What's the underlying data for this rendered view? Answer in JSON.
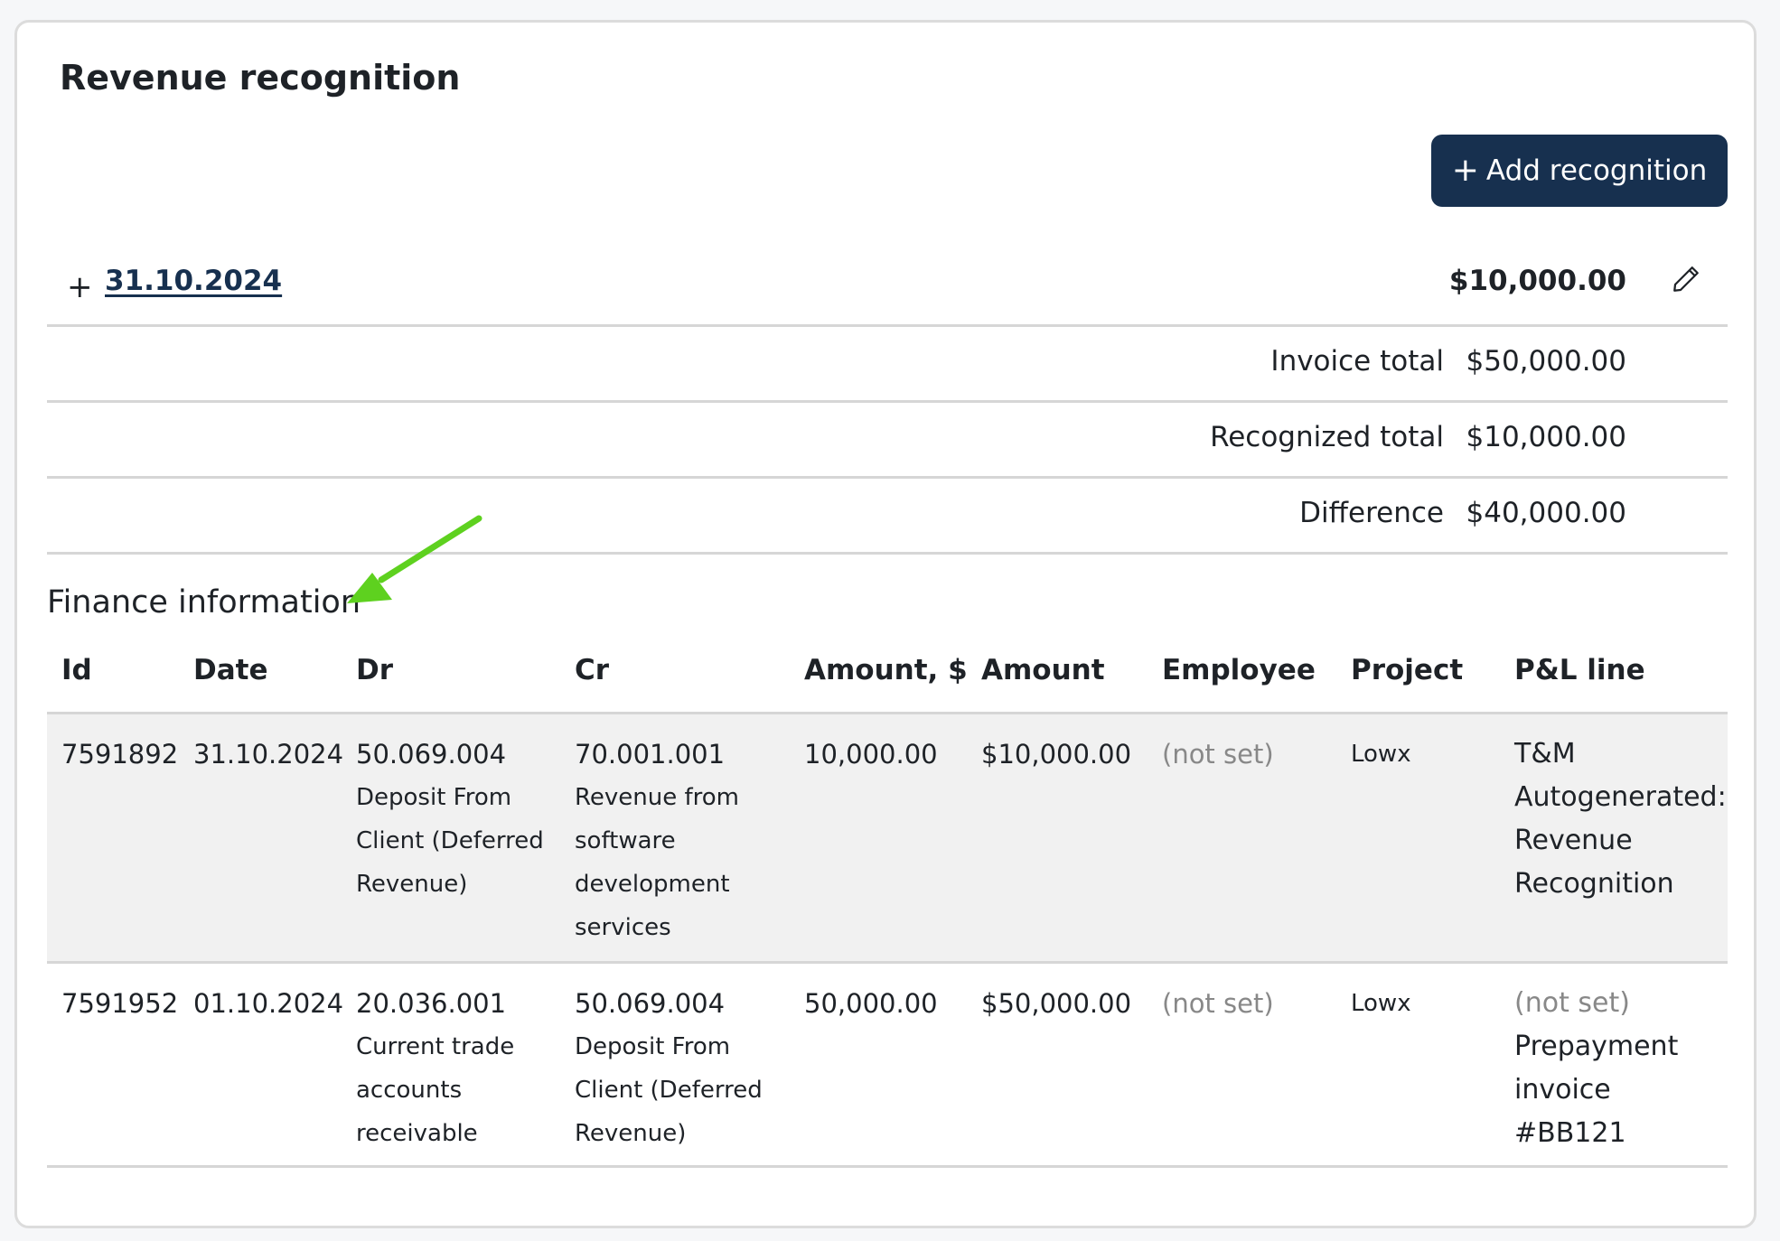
{
  "page": {
    "title": "Revenue recognition"
  },
  "actions": {
    "add_label": "Add recognition",
    "add_icon": "plus-icon"
  },
  "period": {
    "date": "31.10.2024",
    "amount": "$10,000.00",
    "edit_icon": "pencil-icon",
    "expand_icon": "plus-icon"
  },
  "summary": {
    "invoice_total_label": "Invoice total",
    "invoice_total": "$50,000.00",
    "recognized_total_label": "Recognized total",
    "recognized_total": "$10,000.00",
    "difference_label": "Difference",
    "difference": "$40,000.00"
  },
  "finance": {
    "title": "Finance information",
    "columns": [
      "Id",
      "Date",
      "Dr",
      "Cr",
      "Amount, $",
      "Amount",
      "Employee",
      "Project",
      "P&L line"
    ],
    "rows": [
      {
        "id": "7591892",
        "date": "31.10.2024",
        "dr_code": "50.069.004",
        "dr_desc": "Deposit From Client (Deferred Revenue)",
        "cr_code": "70.001.001",
        "cr_desc": "Revenue from software development services",
        "amount_usd": "10,000.00",
        "amount": "$10,000.00",
        "employee": "(not set)",
        "project": "Lowx",
        "pl_line_1": "T&M",
        "pl_line_2": "Autogenerated: Revenue Recognition"
      },
      {
        "id": "7591952",
        "date": "01.10.2024",
        "dr_code": "20.036.001",
        "dr_desc": "Current trade accounts receivable",
        "cr_code": "50.069.004",
        "cr_desc": "Deposit From Client (Deferred Revenue)",
        "amount_usd": "50,000.00",
        "amount": "$50,000.00",
        "employee": "(not set)",
        "project": "Lowx",
        "pl_line_1": "(not set)",
        "pl_line_2": "Prepayment invoice #BB121"
      }
    ]
  },
  "colors": {
    "primary": "#17304f",
    "annotation_arrow": "#5ed11f",
    "muted": "#888888",
    "row_shade": "#f1f1f1"
  }
}
